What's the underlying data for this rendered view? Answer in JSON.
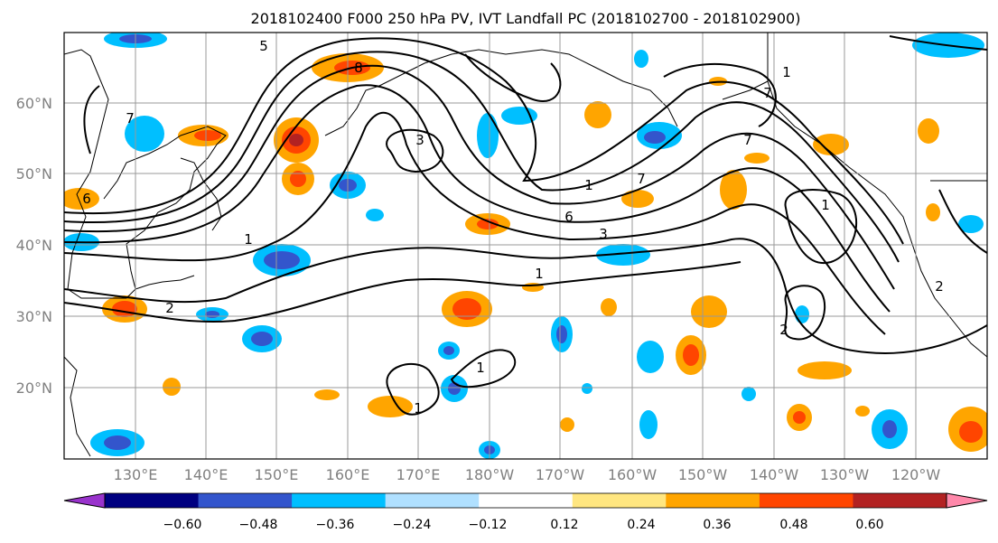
{
  "title": "2018102400 F000 250 hPa PV, IVT Landfall PC (2018102700 - 2018102900)",
  "lon_labels": [
    "130°E",
    "140°E",
    "150°E",
    "160°E",
    "170°E",
    "180°W",
    "170°W",
    "160°W",
    "150°W",
    "140°W",
    "130°W",
    "120°W"
  ],
  "lat_labels": [
    "60°N",
    "50°N",
    "40°N",
    "30°N",
    "20°N"
  ],
  "colorbar": {
    "ticks": [
      "−0.60",
      "−0.48",
      "−0.36",
      "−0.24",
      "−0.12",
      "0.12",
      "0.24",
      "0.36",
      "0.48",
      "0.60"
    ],
    "colors": [
      "#9933cc",
      "#000080",
      "#3355cc",
      "#00bfff",
      "#b0e0ff",
      "#ffffff",
      "#ffe680",
      "#ffa500",
      "#ff4500",
      "#b22222",
      "#ff88aa"
    ]
  },
  "contour_labels": [
    "5",
    "8",
    "7",
    "6",
    "3",
    "7",
    "1",
    "6",
    "3",
    "1",
    "2",
    "1",
    "1",
    "2",
    "7",
    "7",
    "1",
    "1",
    "1",
    "2"
  ],
  "chart_data": {
    "type": "contour-map",
    "lon_range": [
      "120°E",
      "110°W"
    ],
    "lat_range": [
      "10°N",
      "70°N"
    ],
    "grid": true
  }
}
